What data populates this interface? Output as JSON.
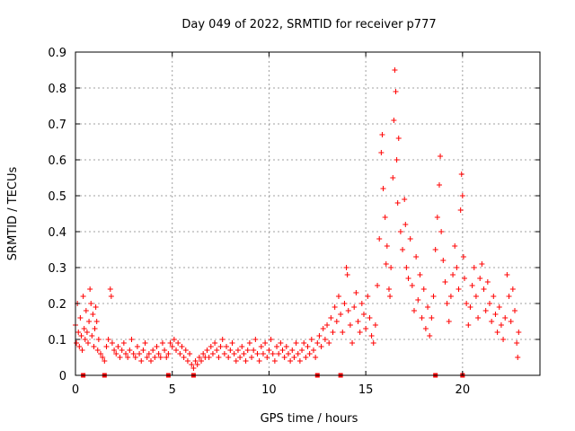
{
  "chart_data": {
    "type": "scatter",
    "title": "Day 049 of 2022, SRMTID for receiver p777",
    "xlabel": "GPS time / hours",
    "ylabel": "SRMTID / TECUs",
    "xlim": [
      0,
      24
    ],
    "ylim": [
      0,
      0.9
    ],
    "xticks": [
      0,
      5,
      10,
      15,
      20
    ],
    "yticks": [
      "0",
      "0.1",
      "0.2",
      "0.3",
      "0.4",
      "0.5",
      "0.6",
      "0.7",
      "0.8",
      "0.9"
    ],
    "grid": true,
    "marker": "+",
    "color": "#ff0000",
    "series": [
      {
        "name": "SRMTID",
        "points": [
          [
            0.0,
            0.14
          ],
          [
            0.05,
            0.09
          ],
          [
            0.1,
            0.2
          ],
          [
            0.15,
            0.12
          ],
          [
            0.2,
            0.08
          ],
          [
            0.25,
            0.16
          ],
          [
            0.3,
            0.11
          ],
          [
            0.35,
            0.07
          ],
          [
            0.4,
            0.22
          ],
          [
            0.45,
            0.13
          ],
          [
            0.5,
            0.1
          ],
          [
            0.55,
            0.18
          ],
          [
            0.6,
            0.12
          ],
          [
            0.65,
            0.09
          ],
          [
            0.7,
            0.15
          ],
          [
            0.75,
            0.24
          ],
          [
            0.8,
            0.2
          ],
          [
            0.85,
            0.11
          ],
          [
            0.9,
            0.17
          ],
          [
            0.95,
            0.08
          ],
          [
            1.0,
            0.13
          ],
          [
            1.05,
            0.19
          ],
          [
            1.1,
            0.15
          ],
          [
            1.15,
            0.07
          ],
          [
            1.2,
            0.1
          ],
          [
            1.3,
            0.06
          ],
          [
            1.4,
            0.05
          ],
          [
            1.5,
            0.04
          ],
          [
            1.6,
            0.08
          ],
          [
            1.7,
            0.1
          ],
          [
            1.8,
            0.24
          ],
          [
            1.85,
            0.22
          ],
          [
            1.9,
            0.09
          ],
          [
            2.0,
            0.07
          ],
          [
            2.1,
            0.06
          ],
          [
            2.2,
            0.08
          ],
          [
            2.3,
            0.05
          ],
          [
            2.4,
            0.07
          ],
          [
            2.5,
            0.09
          ],
          [
            2.6,
            0.06
          ],
          [
            2.7,
            0.05
          ],
          [
            2.8,
            0.07
          ],
          [
            2.9,
            0.1
          ],
          [
            3.0,
            0.06
          ],
          [
            3.1,
            0.05
          ],
          [
            3.2,
            0.08
          ],
          [
            3.3,
            0.06
          ],
          [
            3.4,
            0.04
          ],
          [
            3.5,
            0.07
          ],
          [
            3.6,
            0.09
          ],
          [
            3.7,
            0.05
          ],
          [
            3.8,
            0.06
          ],
          [
            3.9,
            0.04
          ],
          [
            4.0,
            0.07
          ],
          [
            4.1,
            0.05
          ],
          [
            4.2,
            0.08
          ],
          [
            4.3,
            0.06
          ],
          [
            4.4,
            0.05
          ],
          [
            4.5,
            0.09
          ],
          [
            4.6,
            0.07
          ],
          [
            4.7,
            0.05
          ],
          [
            4.8,
            0.06
          ],
          [
            4.9,
            0.09
          ],
          [
            5.0,
            0.08
          ],
          [
            5.1,
            0.1
          ],
          [
            5.2,
            0.07
          ],
          [
            5.3,
            0.09
          ],
          [
            5.4,
            0.06
          ],
          [
            5.5,
            0.08
          ],
          [
            5.6,
            0.05
          ],
          [
            5.7,
            0.07
          ],
          [
            5.8,
            0.04
          ],
          [
            5.9,
            0.06
          ],
          [
            6.0,
            0.03
          ],
          [
            6.1,
            0.02
          ],
          [
            6.2,
            0.04
          ],
          [
            6.3,
            0.03
          ],
          [
            6.4,
            0.05
          ],
          [
            6.5,
            0.04
          ],
          [
            6.6,
            0.06
          ],
          [
            6.7,
            0.05
          ],
          [
            6.8,
            0.07
          ],
          [
            6.9,
            0.05
          ],
          [
            7.0,
            0.08
          ],
          [
            7.1,
            0.06
          ],
          [
            7.2,
            0.09
          ],
          [
            7.3,
            0.07
          ],
          [
            7.4,
            0.05
          ],
          [
            7.5,
            0.08
          ],
          [
            7.6,
            0.1
          ],
          [
            7.7,
            0.06
          ],
          [
            7.8,
            0.08
          ],
          [
            7.9,
            0.05
          ],
          [
            8.0,
            0.07
          ],
          [
            8.1,
            0.09
          ],
          [
            8.2,
            0.06
          ],
          [
            8.3,
            0.04
          ],
          [
            8.4,
            0.07
          ],
          [
            8.5,
            0.05
          ],
          [
            8.6,
            0.08
          ],
          [
            8.7,
            0.06
          ],
          [
            8.8,
            0.04
          ],
          [
            8.9,
            0.07
          ],
          [
            9.0,
            0.09
          ],
          [
            9.1,
            0.05
          ],
          [
            9.2,
            0.07
          ],
          [
            9.3,
            0.1
          ],
          [
            9.4,
            0.06
          ],
          [
            9.5,
            0.04
          ],
          [
            9.6,
            0.08
          ],
          [
            9.7,
            0.06
          ],
          [
            9.8,
            0.09
          ],
          [
            9.9,
            0.05
          ],
          [
            10.0,
            0.07
          ],
          [
            10.1,
            0.1
          ],
          [
            10.2,
            0.06
          ],
          [
            10.3,
            0.04
          ],
          [
            10.4,
            0.08
          ],
          [
            10.5,
            0.06
          ],
          [
            10.6,
            0.09
          ],
          [
            10.7,
            0.07
          ],
          [
            10.8,
            0.05
          ],
          [
            10.9,
            0.08
          ],
          [
            11.0,
            0.06
          ],
          [
            11.1,
            0.04
          ],
          [
            11.2,
            0.07
          ],
          [
            11.3,
            0.05
          ],
          [
            11.4,
            0.09
          ],
          [
            11.5,
            0.06
          ],
          [
            11.6,
            0.04
          ],
          [
            11.7,
            0.07
          ],
          [
            11.8,
            0.09
          ],
          [
            11.9,
            0.05
          ],
          [
            12.0,
            0.08
          ],
          [
            12.1,
            0.06
          ],
          [
            12.2,
            0.1
          ],
          [
            12.3,
            0.07
          ],
          [
            12.4,
            0.05
          ],
          [
            12.5,
            0.09
          ],
          [
            12.6,
            0.11
          ],
          [
            12.7,
            0.08
          ],
          [
            12.8,
            0.13
          ],
          [
            12.9,
            0.1
          ],
          [
            13.0,
            0.14
          ],
          [
            13.1,
            0.09
          ],
          [
            13.2,
            0.16
          ],
          [
            13.3,
            0.12
          ],
          [
            13.4,
            0.19
          ],
          [
            13.5,
            0.15
          ],
          [
            13.6,
            0.22
          ],
          [
            13.7,
            0.17
          ],
          [
            13.8,
            0.12
          ],
          [
            13.9,
            0.2
          ],
          [
            14.0,
            0.3
          ],
          [
            14.05,
            0.28
          ],
          [
            14.1,
            0.18
          ],
          [
            14.2,
            0.14
          ],
          [
            14.3,
            0.09
          ],
          [
            14.4,
            0.19
          ],
          [
            14.5,
            0.23
          ],
          [
            14.6,
            0.15
          ],
          [
            14.7,
            0.12
          ],
          [
            14.8,
            0.2
          ],
          [
            14.9,
            0.17
          ],
          [
            15.0,
            0.13
          ],
          [
            15.1,
            0.22
          ],
          [
            15.2,
            0.16
          ],
          [
            15.3,
            0.11
          ],
          [
            15.4,
            0.09
          ],
          [
            15.5,
            0.14
          ],
          [
            15.6,
            0.25
          ],
          [
            15.7,
            0.38
          ],
          [
            15.8,
            0.62
          ],
          [
            15.85,
            0.67
          ],
          [
            15.9,
            0.52
          ],
          [
            16.0,
            0.44
          ],
          [
            16.05,
            0.31
          ],
          [
            16.1,
            0.36
          ],
          [
            16.2,
            0.24
          ],
          [
            16.25,
            0.22
          ],
          [
            16.3,
            0.3
          ],
          [
            16.4,
            0.55
          ],
          [
            16.45,
            0.71
          ],
          [
            16.5,
            0.85
          ],
          [
            16.55,
            0.79
          ],
          [
            16.6,
            0.6
          ],
          [
            16.65,
            0.48
          ],
          [
            16.7,
            0.66
          ],
          [
            16.8,
            0.4
          ],
          [
            16.9,
            0.35
          ],
          [
            17.0,
            0.49
          ],
          [
            17.05,
            0.42
          ],
          [
            17.1,
            0.3
          ],
          [
            17.2,
            0.27
          ],
          [
            17.3,
            0.38
          ],
          [
            17.4,
            0.25
          ],
          [
            17.5,
            0.18
          ],
          [
            17.6,
            0.33
          ],
          [
            17.7,
            0.21
          ],
          [
            17.8,
            0.28
          ],
          [
            17.9,
            0.16
          ],
          [
            18.0,
            0.24
          ],
          [
            18.1,
            0.13
          ],
          [
            18.2,
            0.19
          ],
          [
            18.3,
            0.11
          ],
          [
            18.4,
            0.16
          ],
          [
            18.5,
            0.22
          ],
          [
            18.6,
            0.35
          ],
          [
            18.7,
            0.44
          ],
          [
            18.8,
            0.53
          ],
          [
            18.85,
            0.61
          ],
          [
            18.9,
            0.4
          ],
          [
            19.0,
            0.32
          ],
          [
            19.1,
            0.26
          ],
          [
            19.2,
            0.2
          ],
          [
            19.3,
            0.15
          ],
          [
            19.4,
            0.22
          ],
          [
            19.5,
            0.28
          ],
          [
            19.6,
            0.36
          ],
          [
            19.7,
            0.3
          ],
          [
            19.8,
            0.24
          ],
          [
            19.9,
            0.46
          ],
          [
            19.95,
            0.56
          ],
          [
            20.0,
            0.5
          ],
          [
            20.05,
            0.33
          ],
          [
            20.1,
            0.27
          ],
          [
            20.2,
            0.2
          ],
          [
            20.3,
            0.14
          ],
          [
            20.4,
            0.19
          ],
          [
            20.5,
            0.25
          ],
          [
            20.6,
            0.3
          ],
          [
            20.7,
            0.22
          ],
          [
            20.8,
            0.16
          ],
          [
            20.9,
            0.27
          ],
          [
            21.0,
            0.31
          ],
          [
            21.1,
            0.24
          ],
          [
            21.2,
            0.18
          ],
          [
            21.3,
            0.26
          ],
          [
            21.4,
            0.2
          ],
          [
            21.5,
            0.15
          ],
          [
            21.6,
            0.22
          ],
          [
            21.7,
            0.17
          ],
          [
            21.8,
            0.12
          ],
          [
            21.9,
            0.19
          ],
          [
            22.0,
            0.14
          ],
          [
            22.1,
            0.1
          ],
          [
            22.2,
            0.16
          ],
          [
            22.3,
            0.28
          ],
          [
            22.4,
            0.22
          ],
          [
            22.5,
            0.15
          ],
          [
            22.6,
            0.24
          ],
          [
            22.7,
            0.18
          ],
          [
            22.8,
            0.09
          ],
          [
            22.85,
            0.05
          ],
          [
            22.9,
            0.12
          ]
        ]
      }
    ],
    "markers_on_axis": [
      0.4,
      1.5,
      4.8,
      6.1,
      12.5,
      13.7,
      18.6,
      20.0
    ]
  }
}
